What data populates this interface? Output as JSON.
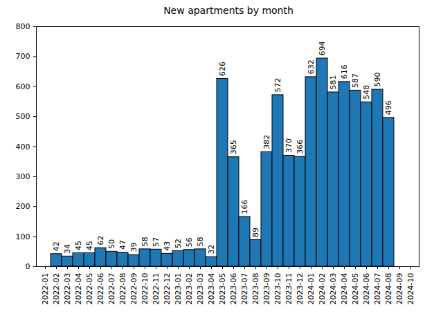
{
  "chart_data": {
    "type": "bar",
    "title": "New apartments by month",
    "categories": [
      "2022-01",
      "2022-02",
      "2022-03",
      "2022-04",
      "2022-05",
      "2022-06",
      "2022-07",
      "2022-08",
      "2022-09",
      "2022-10",
      "2022-11",
      "2022-12",
      "2023-01",
      "2023-02",
      "2023-03",
      "2023-04",
      "2023-05",
      "2023-06",
      "2023-07",
      "2023-08",
      "2023-09",
      "2023-10",
      "2023-11",
      "2023-12",
      "2024-01",
      "2024-02",
      "2024-03",
      "2024-04",
      "2024-05",
      "2024-06",
      "2024-07",
      "2024-08",
      "2024-09",
      "2024-10"
    ],
    "values": [
      null,
      42,
      34,
      45,
      45,
      62,
      50,
      47,
      39,
      58,
      57,
      43,
      52,
      56,
      58,
      32,
      626,
      365,
      166,
      89,
      382,
      572,
      370,
      366,
      632,
      694,
      581,
      616,
      587,
      548,
      590,
      496,
      null,
      null
    ],
    "color": "#1f77b4",
    "ylim": [
      0,
      800
    ],
    "yticks": [
      0,
      100,
      200,
      300,
      400,
      500,
      600,
      700,
      800
    ],
    "grid": false,
    "data_labels": true
  }
}
